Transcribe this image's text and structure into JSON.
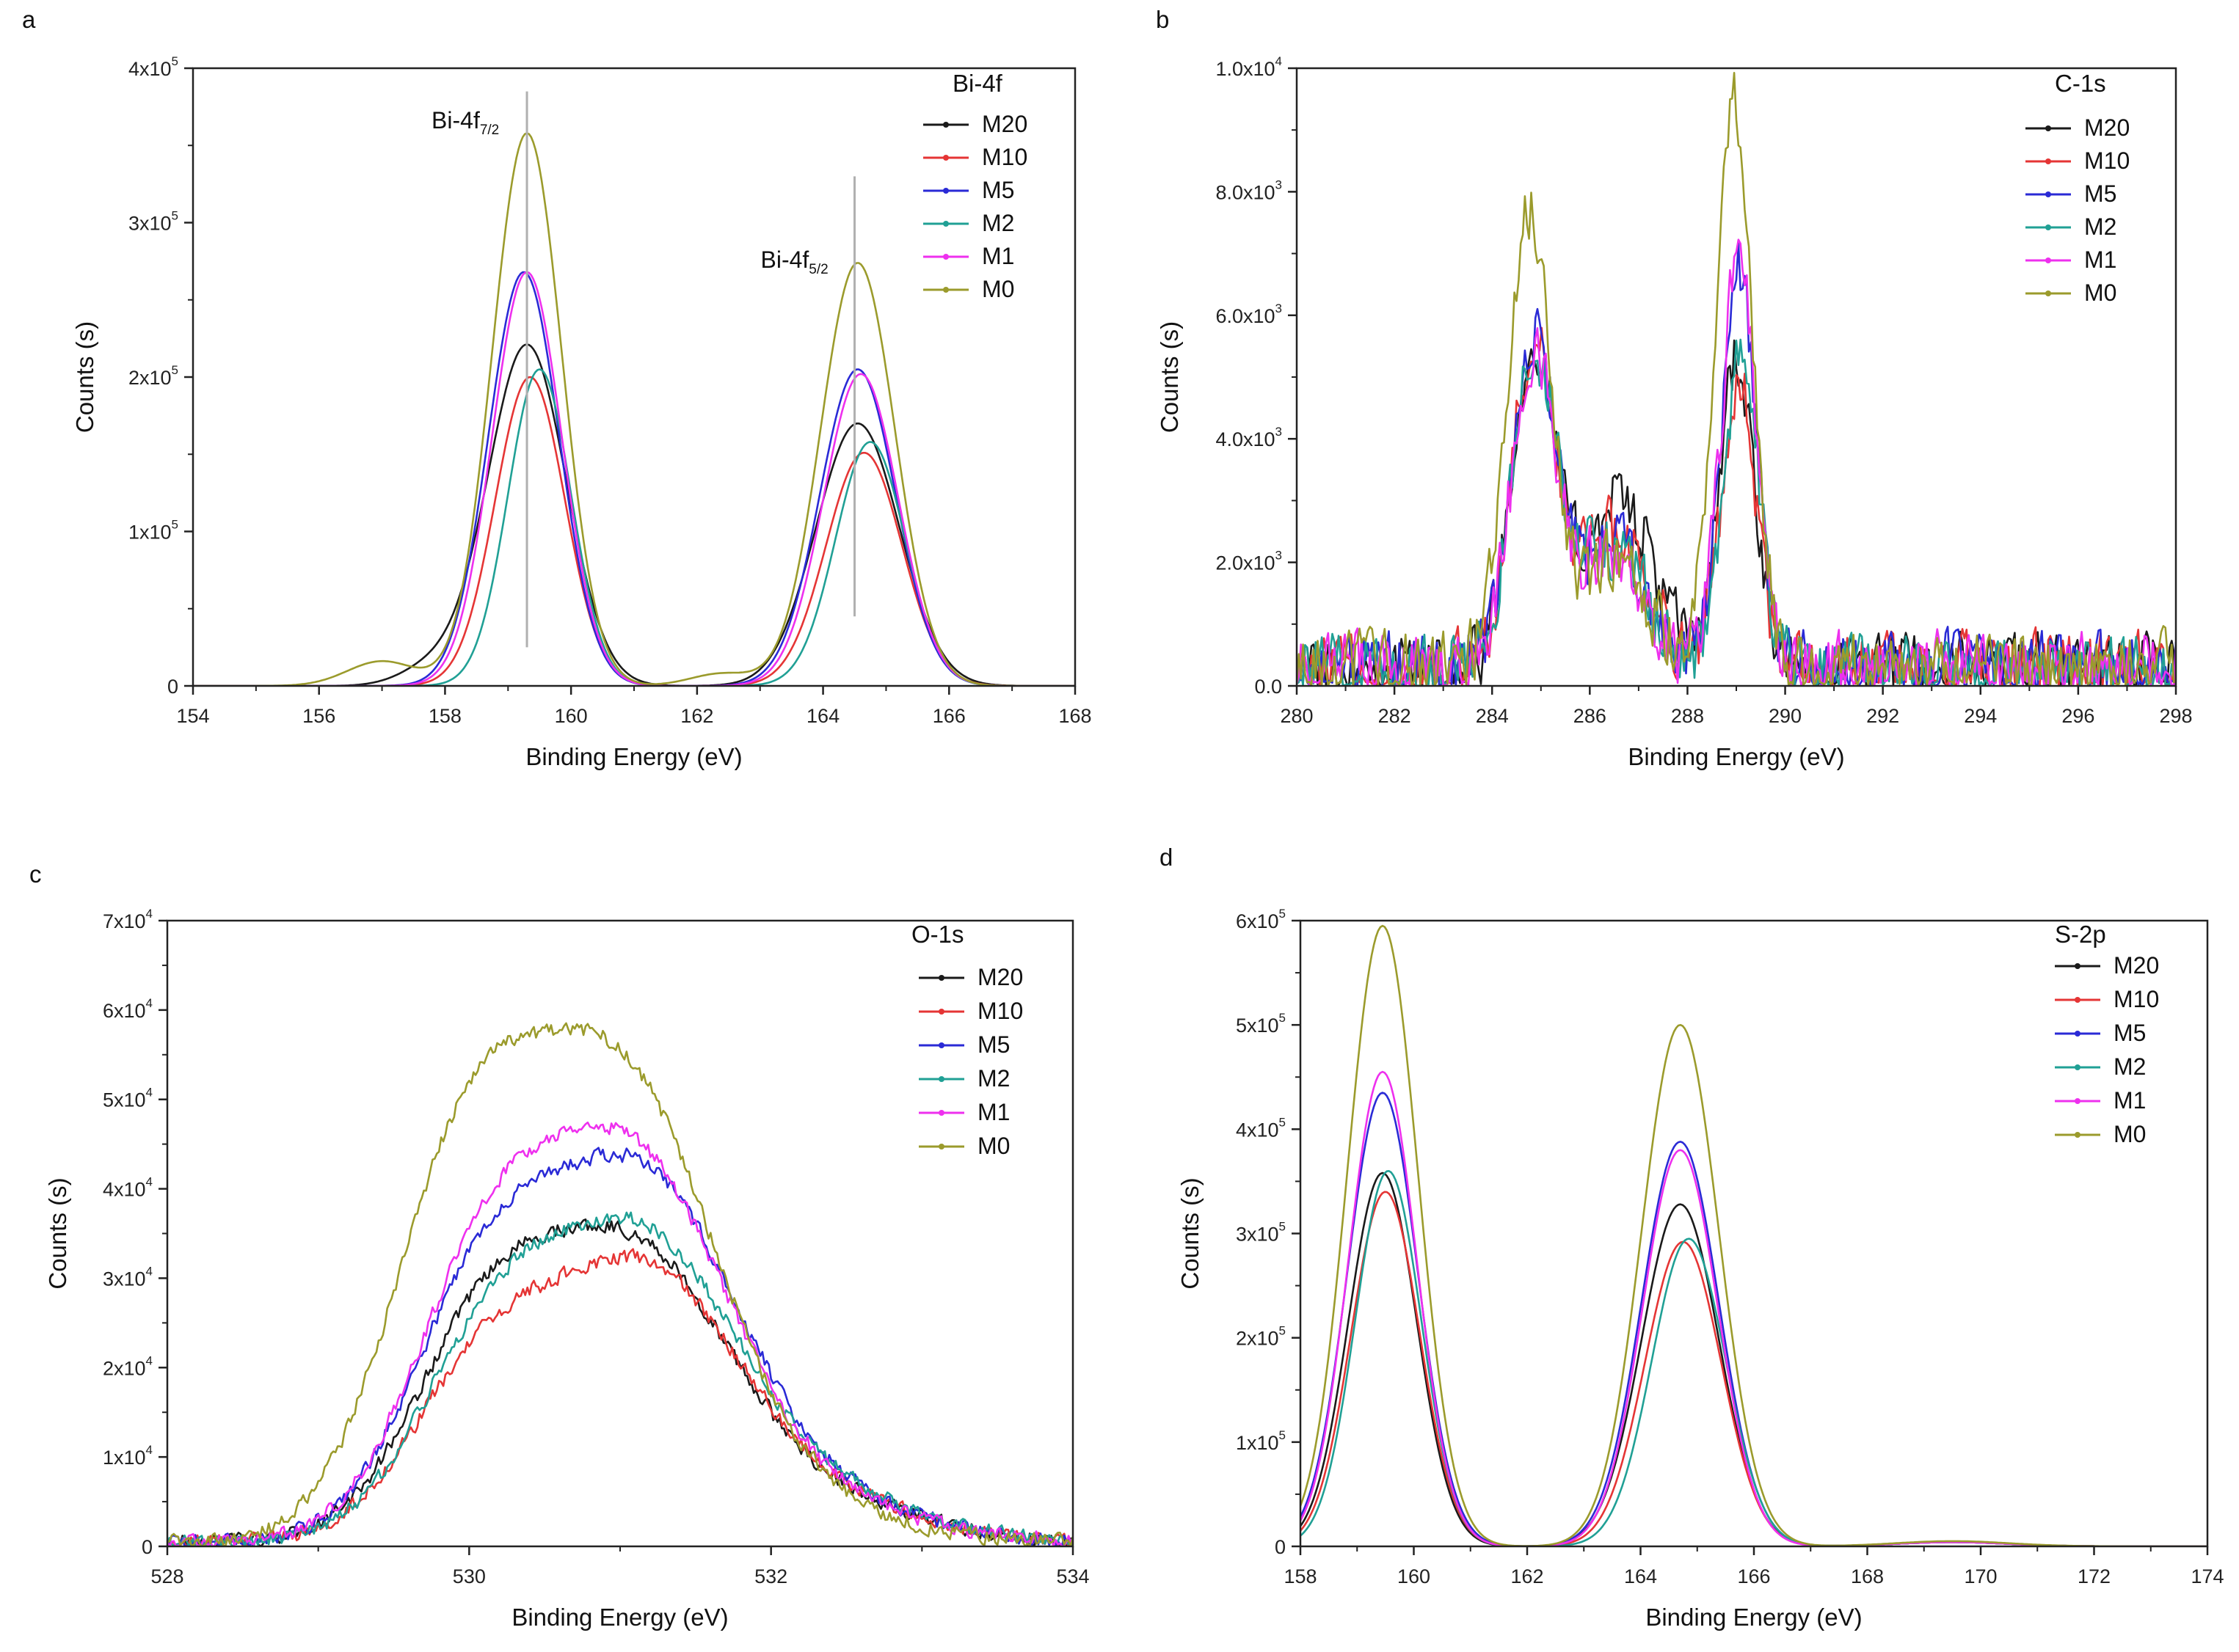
{
  "figure": {
    "panels": [
      "a",
      "b",
      "c",
      "d"
    ]
  },
  "legend_colors": {
    "M20": "#1a1a1a",
    "M10": "#e53535",
    "M5": "#2a2ad6",
    "M2": "#20a095",
    "M1": "#ee30ee",
    "M0": "#9b9b2c"
  },
  "chart_data": [
    {
      "panel": "a",
      "type": "line",
      "title": "Bi-4f",
      "xlabel": "Binding Energy (eV)",
      "ylabel": "Counts (s)",
      "xlim": [
        154,
        168
      ],
      "ylim": [
        0,
        400000
      ],
      "xticks": [
        154,
        156,
        158,
        160,
        162,
        164,
        166,
        168
      ],
      "yticks": [
        0,
        100000,
        200000,
        300000,
        400000
      ],
      "ytick_labels": [
        {
          "base": "0",
          "exp": ""
        },
        {
          "base": "1x10",
          "exp": "5"
        },
        {
          "base": "2x10",
          "exp": "5"
        },
        {
          "base": "3x10",
          "exp": "5"
        },
        {
          "base": "4x10",
          "exp": "5"
        }
      ],
      "legend": [
        "M20",
        "M10",
        "M5",
        "M2",
        "M1",
        "M0"
      ],
      "annotations": [
        {
          "main": "Bi-4f",
          "sub": "7/2",
          "x": 159.3,
          "ymin": 25000,
          "ymax": 385000
        },
        {
          "main": "Bi-4f",
          "sub": "5/2",
          "x": 164.5,
          "ymin": 45000,
          "ymax": 330000
        }
      ],
      "series": [
        {
          "name": "M20",
          "peaks": [
            {
              "c": 159.3,
              "a": 221000,
              "w": 0.62
            },
            {
              "c": 164.55,
              "a": 170000,
              "w": 0.66
            },
            {
              "c": 157.8,
              "a": 12000,
              "w": 0.5
            }
          ],
          "noise": 0
        },
        {
          "name": "M10",
          "peaks": [
            {
              "c": 159.35,
              "a": 200000,
              "w": 0.55
            },
            {
              "c": 164.65,
              "a": 151000,
              "w": 0.6
            }
          ],
          "noise": 0
        },
        {
          "name": "M5",
          "peaks": [
            {
              "c": 159.25,
              "a": 268000,
              "w": 0.56
            },
            {
              "c": 164.55,
              "a": 205000,
              "w": 0.6
            }
          ],
          "noise": 0
        },
        {
          "name": "M2",
          "peaks": [
            {
              "c": 159.5,
              "a": 205000,
              "w": 0.5
            },
            {
              "c": 164.75,
              "a": 158000,
              "w": 0.55
            }
          ],
          "noise": 0
        },
        {
          "name": "M1",
          "peaks": [
            {
              "c": 159.3,
              "a": 268000,
              "w": 0.55
            },
            {
              "c": 164.6,
              "a": 202000,
              "w": 0.59
            }
          ],
          "noise": 0
        },
        {
          "name": "M0",
          "peaks": [
            {
              "c": 159.3,
              "a": 358000,
              "w": 0.55
            },
            {
              "c": 164.55,
              "a": 274000,
              "w": 0.59
            },
            {
              "c": 157.0,
              "a": 16000,
              "w": 0.55
            },
            {
              "c": 162.4,
              "a": 8000,
              "w": 0.5
            }
          ],
          "noise": 0
        }
      ]
    },
    {
      "panel": "b",
      "type": "line",
      "title": "C-1s",
      "xlabel": "Binding Energy (eV)",
      "ylabel": "Counts (s)",
      "xlim": [
        280,
        298
      ],
      "ylim": [
        0,
        10000
      ],
      "xticks": [
        280,
        282,
        284,
        286,
        288,
        290,
        292,
        294,
        296,
        298
      ],
      "yticks": [
        0,
        2000,
        4000,
        6000,
        8000,
        10000
      ],
      "ytick_labels": [
        {
          "base": "0.0",
          "exp": ""
        },
        {
          "base": "2.0x10",
          "exp": "3"
        },
        {
          "base": "4.0x10",
          "exp": "3"
        },
        {
          "base": "6.0x10",
          "exp": "3"
        },
        {
          "base": "8.0x10",
          "exp": "3"
        },
        {
          "base": "1.0x10",
          "exp": "4"
        }
      ],
      "legend": [
        "M20",
        "M10",
        "M5",
        "M2",
        "M1",
        "M0"
      ],
      "series": [
        {
          "name": "M20",
          "peaks": [
            {
              "c": 284.85,
              "a": 5200,
              "w": 0.45
            },
            {
              "c": 286.6,
              "a": 2700,
              "w": 0.7
            },
            {
              "c": 289.0,
              "a": 5000,
              "w": 0.35
            }
          ],
          "noise": 900
        },
        {
          "name": "M10",
          "peaks": [
            {
              "c": 284.85,
              "a": 5100,
              "w": 0.45
            },
            {
              "c": 286.5,
              "a": 2200,
              "w": 0.7
            },
            {
              "c": 289.05,
              "a": 4600,
              "w": 0.35
            }
          ],
          "noise": 900
        },
        {
          "name": "M5",
          "peaks": [
            {
              "c": 284.85,
              "a": 5100,
              "w": 0.45
            },
            {
              "c": 286.4,
              "a": 2000,
              "w": 0.7
            },
            {
              "c": 289.05,
              "a": 6500,
              "w": 0.35
            }
          ],
          "noise": 900
        },
        {
          "name": "M2",
          "peaks": [
            {
              "c": 284.85,
              "a": 5000,
              "w": 0.45
            },
            {
              "c": 286.4,
              "a": 2000,
              "w": 0.7
            },
            {
              "c": 289.1,
              "a": 5000,
              "w": 0.35
            }
          ],
          "noise": 900
        },
        {
          "name": "M1",
          "peaks": [
            {
              "c": 284.85,
              "a": 5000,
              "w": 0.45
            },
            {
              "c": 286.4,
              "a": 1800,
              "w": 0.7
            },
            {
              "c": 289.05,
              "a": 6700,
              "w": 0.35
            }
          ],
          "noise": 900
        },
        {
          "name": "M0",
          "peaks": [
            {
              "c": 284.75,
              "a": 7300,
              "w": 0.45
            },
            {
              "c": 286.5,
              "a": 1700,
              "w": 0.7
            },
            {
              "c": 288.95,
              "a": 9200,
              "w": 0.38
            }
          ],
          "noise": 900
        }
      ]
    },
    {
      "panel": "c",
      "type": "line",
      "title": "O-1s",
      "xlabel": "Binding Energy (eV)",
      "ylabel": "Counts (s)",
      "xlim": [
        528,
        534
      ],
      "ylim": [
        0,
        70000
      ],
      "xticks": [
        528,
        530,
        532,
        534
      ],
      "yticks": [
        0,
        10000,
        20000,
        30000,
        40000,
        50000,
        60000,
        70000
      ],
      "ytick_labels": [
        {
          "base": "0",
          "exp": ""
        },
        {
          "base": "1x10",
          "exp": "4"
        },
        {
          "base": "2x10",
          "exp": "4"
        },
        {
          "base": "3x10",
          "exp": "4"
        },
        {
          "base": "4x10",
          "exp": "4"
        },
        {
          "base": "5x10",
          "exp": "4"
        },
        {
          "base": "6x10",
          "exp": "4"
        },
        {
          "base": "7x10",
          "exp": "4"
        }
      ],
      "legend": [
        "M20",
        "M10",
        "M5",
        "M2",
        "M1",
        "M0"
      ],
      "series": [
        {
          "name": "M20",
          "peaks": [
            {
              "c": 531.1,
              "a": 30000,
              "w": 0.6
            },
            {
              "c": 530.1,
              "a": 22000,
              "w": 0.5
            },
            {
              "c": 532.2,
              "a": 5000,
              "w": 0.7
            }
          ],
          "noise": 1400
        },
        {
          "name": "M10",
          "peaks": [
            {
              "c": 531.15,
              "a": 28000,
              "w": 0.6
            },
            {
              "c": 530.1,
              "a": 18000,
              "w": 0.5
            },
            {
              "c": 532.2,
              "a": 5000,
              "w": 0.7
            }
          ],
          "noise": 1400
        },
        {
          "name": "M5",
          "peaks": [
            {
              "c": 531.15,
              "a": 38000,
              "w": 0.6
            },
            {
              "c": 530.1,
              "a": 27000,
              "w": 0.5
            },
            {
              "c": 532.2,
              "a": 5000,
              "w": 0.7
            }
          ],
          "noise": 1400
        },
        {
          "name": "M2",
          "peaks": [
            {
              "c": 531.15,
              "a": 31000,
              "w": 0.6
            },
            {
              "c": 530.15,
              "a": 21000,
              "w": 0.5
            },
            {
              "c": 532.2,
              "a": 5500,
              "w": 0.7
            }
          ],
          "noise": 1400
        },
        {
          "name": "M1",
          "peaks": [
            {
              "c": 531.1,
              "a": 40000,
              "w": 0.6
            },
            {
              "c": 530.1,
              "a": 28000,
              "w": 0.5
            },
            {
              "c": 532.2,
              "a": 4500,
              "w": 0.7
            }
          ],
          "noise": 1400
        },
        {
          "name": "M0",
          "peaks": [
            {
              "c": 531.0,
              "a": 50000,
              "w": 0.62
            },
            {
              "c": 529.95,
              "a": 38000,
              "w": 0.5
            },
            {
              "c": 532.1,
              "a": 3500,
              "w": 0.7
            }
          ],
          "noise": 1400
        }
      ]
    },
    {
      "panel": "d",
      "type": "line",
      "title": "S-2p",
      "xlabel": "Binding Energy (eV)",
      "ylabel": "Counts (s)",
      "xlim": [
        158,
        174
      ],
      "ylim": [
        0,
        600000
      ],
      "xticks": [
        158,
        160,
        162,
        164,
        166,
        168,
        170,
        172,
        174
      ],
      "yticks": [
        0,
        100000,
        200000,
        300000,
        400000,
        500000,
        600000
      ],
      "ytick_labels": [
        {
          "base": "0",
          "exp": ""
        },
        {
          "base": "1x10",
          "exp": "5"
        },
        {
          "base": "2x10",
          "exp": "5"
        },
        {
          "base": "3x10",
          "exp": "5"
        },
        {
          "base": "4x10",
          "exp": "5"
        },
        {
          "base": "5x10",
          "exp": "5"
        },
        {
          "base": "6x10",
          "exp": "5"
        }
      ],
      "legend": [
        "M20",
        "M10",
        "M5",
        "M2",
        "M1",
        "M0"
      ],
      "series": [
        {
          "name": "M20",
          "peaks": [
            {
              "c": 159.45,
              "a": 358000,
              "w": 0.6
            },
            {
              "c": 164.7,
              "a": 328000,
              "w": 0.68
            },
            {
              "c": 169.5,
              "a": 4000,
              "w": 1.0
            }
          ],
          "noise": 0
        },
        {
          "name": "M10",
          "peaks": [
            {
              "c": 159.5,
              "a": 340000,
              "w": 0.6
            },
            {
              "c": 164.75,
              "a": 292000,
              "w": 0.67
            },
            {
              "c": 169.5,
              "a": 4000,
              "w": 1.0
            }
          ],
          "noise": 0
        },
        {
          "name": "M5",
          "peaks": [
            {
              "c": 159.45,
              "a": 435000,
              "w": 0.62
            },
            {
              "c": 164.7,
              "a": 388000,
              "w": 0.68
            },
            {
              "c": 169.5,
              "a": 4000,
              "w": 1.0
            }
          ],
          "noise": 0
        },
        {
          "name": "M2",
          "peaks": [
            {
              "c": 159.55,
              "a": 360000,
              "w": 0.58
            },
            {
              "c": 164.85,
              "a": 295000,
              "w": 0.65
            },
            {
              "c": 169.5,
              "a": 4000,
              "w": 1.0
            }
          ],
          "noise": 0
        },
        {
          "name": "M1",
          "peaks": [
            {
              "c": 159.45,
              "a": 455000,
              "w": 0.6
            },
            {
              "c": 164.7,
              "a": 380000,
              "w": 0.66
            },
            {
              "c": 169.5,
              "a": 4000,
              "w": 1.0
            }
          ],
          "noise": 0
        },
        {
          "name": "M0",
          "peaks": [
            {
              "c": 159.45,
              "a": 595000,
              "w": 0.62
            },
            {
              "c": 164.7,
              "a": 500000,
              "w": 0.68
            },
            {
              "c": 169.5,
              "a": 5000,
              "w": 1.0
            }
          ],
          "noise": 0
        }
      ]
    }
  ]
}
